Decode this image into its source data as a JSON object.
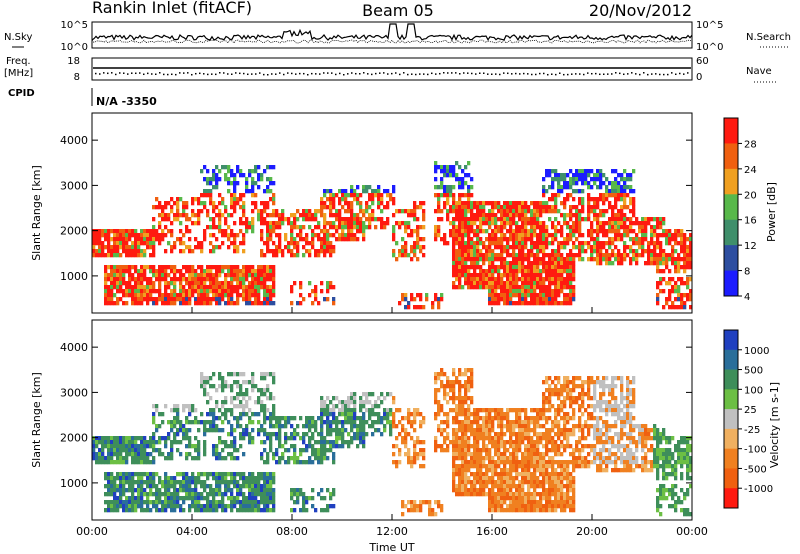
{
  "header": {
    "title": "Rankin Inlet (fitACF)",
    "beam": "Beam 05",
    "date": "20/Nov/2012"
  },
  "labels": {
    "nsky": "N.Sky",
    "nsearch": "N.Search",
    "freq_top": "Freq.",
    "freq_unit": "[MHz]",
    "nave": "Nave",
    "cpid": "CPID",
    "cpid_value": "N/A  -3350",
    "pow_exp_top": "10^5",
    "pow_exp_bot": "10^0"
  },
  "chart_data": [
    {
      "type": "line",
      "panel": "noise",
      "ylabel_left": "N.Sky",
      "ylabel_right": "N.Search",
      "yticks_left": [
        "10^5",
        "10^0"
      ],
      "yticks_right": [
        "10^5",
        "10^0"
      ],
      "ylim": [
        0,
        5
      ],
      "log": true
    },
    {
      "type": "scatter",
      "panel": "frequency",
      "ylabel_left": "Freq. [MHz]",
      "ylabel_right": "Nave",
      "yticks_left": [
        "18",
        "8"
      ],
      "yticks_right": [
        "60",
        "0"
      ],
      "ylim": [
        8,
        18
      ]
    },
    {
      "type": "heatmap",
      "panel": "power",
      "ylabel": "Slant Range [km]",
      "yticks": [
        1000,
        2000,
        3000,
        4000
      ],
      "ylim": [
        180,
        4600
      ],
      "colorbar_label": "Power [dB]",
      "colorbar_ticks": [
        "4",
        "8",
        "12",
        "16",
        "20",
        "24",
        "28"
      ],
      "colors": [
        "#1c1cff",
        "#2d4ea0",
        "#3f8f6b",
        "#58b84a",
        "#f0a020",
        "#f06010",
        "#ff1a10"
      ]
    },
    {
      "type": "heatmap",
      "panel": "velocity",
      "ylabel": "Slant Range [km]",
      "yticks": [
        1000,
        2000,
        3000,
        4000
      ],
      "ylim": [
        180,
        4600
      ],
      "colorbar_label": "Velocity [m s-1]",
      "colorbar_ticks": [
        "1000",
        "500",
        "100",
        "25",
        "-25",
        "-100",
        "-500",
        "-1000"
      ],
      "colors": [
        "#2040c0",
        "#2a6e9a",
        "#3e8e5a",
        "#6cbf44",
        "#c0c0c0",
        "#f0b060",
        "#f08020",
        "#f06010",
        "#ff1a10"
      ]
    }
  ],
  "xaxis": {
    "label": "Time UT",
    "ticks": [
      "00:00",
      "04:00",
      "08:00",
      "12:00",
      "16:00",
      "20:00",
      "00:00"
    ]
  }
}
